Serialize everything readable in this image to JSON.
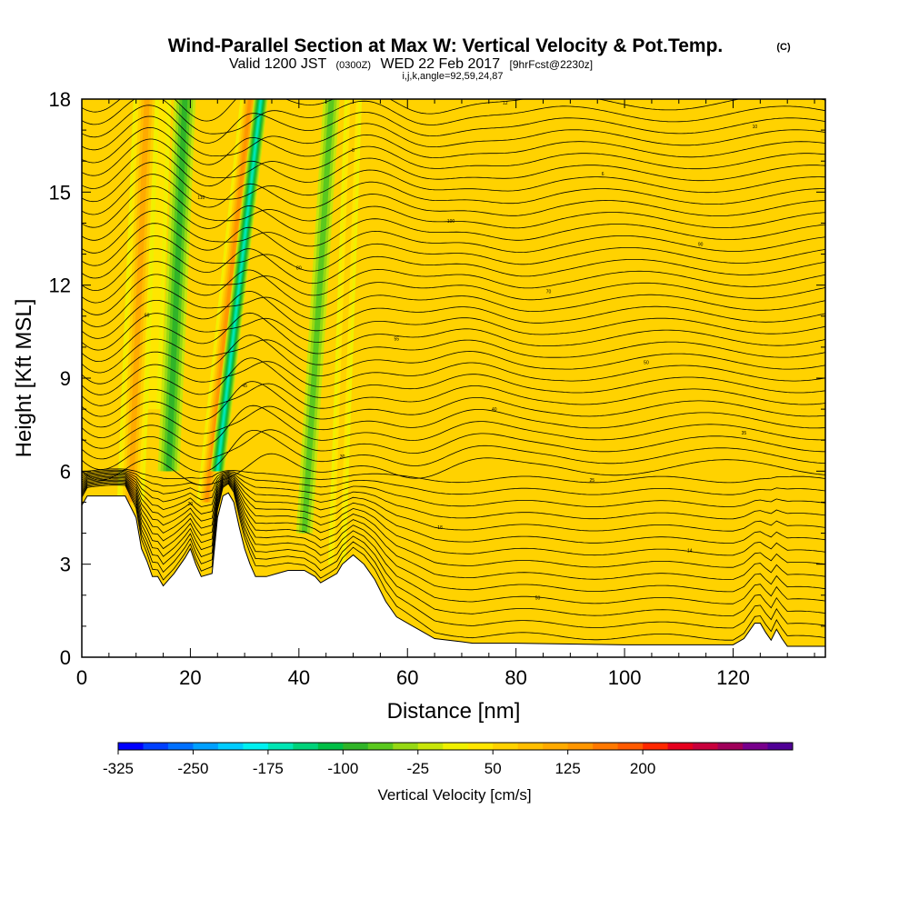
{
  "header": {
    "title": "Wind-Parallel Section at Max W: Vertical Velocity & Pot.Temp.",
    "copyright": "(C)",
    "valid_prefix": "Valid 1200 JST",
    "valid_utc": "(0300Z)",
    "valid_date": "WED 22 Feb 2017",
    "forecast": "[9hrFcst@2230z]",
    "section_params": "i,j,k,angle=92,59,24,87"
  },
  "chart_data": {
    "type": "heatmap",
    "xlabel": "Distance [nm]",
    "ylabel": "Height [Kft MSL]",
    "xlim": [
      0,
      137
    ],
    "ylim": [
      0,
      18
    ],
    "x_ticks": [
      "0",
      "20",
      "40",
      "60",
      "80",
      "100",
      "120"
    ],
    "x_tick_values": [
      0,
      20,
      40,
      60,
      80,
      100,
      120
    ],
    "y_ticks": [
      "0",
      "3",
      "6",
      "9",
      "12",
      "15",
      "18"
    ],
    "y_tick_values": [
      0,
      3,
      6,
      9,
      12,
      15,
      18
    ],
    "colorbar": {
      "label": "Vertical Velocity [cm/s]",
      "tick_labels": [
        "-325",
        "-250",
        "-175",
        "-100",
        "-25",
        "50",
        "125",
        "200"
      ],
      "tick_values": [
        -325,
        -250,
        -175,
        -100,
        -25,
        50,
        125,
        200
      ],
      "min": -325,
      "step": 25,
      "colors": [
        "#0000ff",
        "#0040ff",
        "#0070ff",
        "#00a0ff",
        "#00ccff",
        "#00f0f0",
        "#00e6b4",
        "#00d27a",
        "#00be46",
        "#30b428",
        "#5ac81e",
        "#96d814",
        "#c8e60a",
        "#f0f000",
        "#ffe600",
        "#ffd200",
        "#ffbe00",
        "#ffaa00",
        "#ff9600",
        "#ff7800",
        "#ff5a00",
        "#ff2800",
        "#e6001e",
        "#c8003c",
        "#a0005a",
        "#78008c",
        "#500096"
      ]
    },
    "terrain": [
      [
        0,
        4.9
      ],
      [
        1,
        5.2
      ],
      [
        8,
        5.2
      ],
      [
        10,
        4.5
      ],
      [
        11,
        3.5
      ],
      [
        12,
        3.1
      ],
      [
        13,
        2.6
      ],
      [
        14,
        2.6
      ],
      [
        15,
        2.3
      ],
      [
        16,
        2.5
      ],
      [
        17,
        2.7
      ],
      [
        19,
        3.2
      ],
      [
        20,
        3.5
      ],
      [
        21,
        3.0
      ],
      [
        22,
        2.6
      ],
      [
        24,
        2.7
      ],
      [
        25,
        4.5
      ],
      [
        26,
        5.2
      ],
      [
        27,
        5.3
      ],
      [
        28,
        5.0
      ],
      [
        29,
        4.2
      ],
      [
        30,
        3.5
      ],
      [
        31,
        3.0
      ],
      [
        32,
        2.6
      ],
      [
        34,
        2.6
      ],
      [
        36,
        2.7
      ],
      [
        38,
        2.8
      ],
      [
        41,
        2.8
      ],
      [
        43,
        2.6
      ],
      [
        44,
        2.4
      ],
      [
        45,
        2.5
      ],
      [
        47,
        2.7
      ],
      [
        48,
        3.0
      ],
      [
        50,
        3.3
      ],
      [
        52,
        3.0
      ],
      [
        54,
        2.5
      ],
      [
        56,
        1.8
      ],
      [
        58,
        1.3
      ],
      [
        61,
        1.0
      ],
      [
        63,
        0.8
      ],
      [
        65,
        0.6
      ],
      [
        70,
        0.5
      ],
      [
        72,
        0.45
      ],
      [
        80,
        0.45
      ],
      [
        100,
        0.4
      ],
      [
        120,
        0.4
      ],
      [
        122,
        0.6
      ],
      [
        124,
        1.1
      ],
      [
        125,
        1.1
      ],
      [
        126,
        0.8
      ],
      [
        127,
        0.55
      ],
      [
        128,
        0.9
      ],
      [
        129,
        0.6
      ],
      [
        130,
        0.35
      ],
      [
        137,
        0.35
      ]
    ],
    "updraft_bands": [
      {
        "x_bottom": 9,
        "x_top": 12,
        "width": 2.5,
        "z_bottom": 5,
        "z_top": 18,
        "value": 125
      },
      {
        "x_bottom": 23,
        "x_top": 31,
        "width": 1.8,
        "z_bottom": 5,
        "z_top": 18,
        "value": 150
      },
      {
        "x_bottom": 47,
        "x_top": 50,
        "width": 1.6,
        "z_bottom": 3,
        "z_top": 18,
        "value": 75
      },
      {
        "x_bottom": 13,
        "x_top": 15,
        "width": 1.5,
        "z_bottom": 8,
        "z_top": 18,
        "value": 50
      }
    ],
    "downdraft_bands": [
      {
        "x_bottom": 25,
        "x_top": 33,
        "width": 1.3,
        "z_bottom": 6,
        "z_top": 18,
        "value": -175
      },
      {
        "x_bottom": 16,
        "x_top": 19,
        "width": 2.0,
        "z_bottom": 6,
        "z_top": 18,
        "value": -100
      },
      {
        "x_bottom": 41,
        "x_top": 46,
        "width": 1.5,
        "z_bottom": 4,
        "z_top": 18,
        "value": -75
      }
    ],
    "contour_labels": [
      "30",
      "50",
      "90",
      "14",
      "18",
      "20",
      "25",
      "30",
      "35",
      "40",
      "45",
      "50",
      "55",
      "60",
      "70",
      "80",
      "90",
      "100",
      "110",
      "6",
      "8",
      "10",
      "12",
      "16"
    ]
  }
}
